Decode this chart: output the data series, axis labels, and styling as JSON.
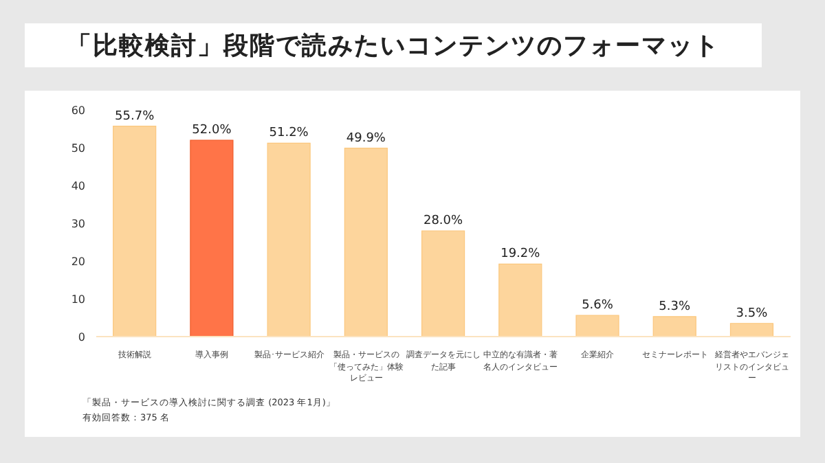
{
  "chart_data": {
    "type": "bar",
    "title": "「比較検討」段階で読みたいコンテンツのフォーマット",
    "categories": [
      "技術解説",
      "導入事例",
      "製品･サービス紹介",
      "製品・サービスの「使ってみた」体験レビュー",
      "調査データを元にした記事",
      "中立的な有識者・著名人のインタビュー",
      "企業紹介",
      "セミナーレポート",
      "経営者やエバンジェリストのインタビュー"
    ],
    "values": [
      55.7,
      52.0,
      51.2,
      49.9,
      28.0,
      19.2,
      5.6,
      5.3,
      3.5
    ],
    "value_labels": [
      "55.7%",
      "52.0%",
      "51.2%",
      "49.9%",
      "28.0%",
      "19.2%",
      "5.6%",
      "5.3%",
      "3.5%"
    ],
    "colors": [
      "#fdd59c",
      "#ff7448",
      "#fdd59c",
      "#fdd59c",
      "#fdd59c",
      "#fdd59c",
      "#fdd59c",
      "#fdd59c",
      "#fdd59c"
    ],
    "ylim": [
      0,
      60
    ],
    "yticks": [
      0,
      10,
      20,
      30,
      40,
      50,
      60
    ],
    "grid": false,
    "annotations": [
      "「製品・サービスの導入検討に関する調査 (2023 年1月)」",
      "有効回答数：375 名"
    ]
  }
}
